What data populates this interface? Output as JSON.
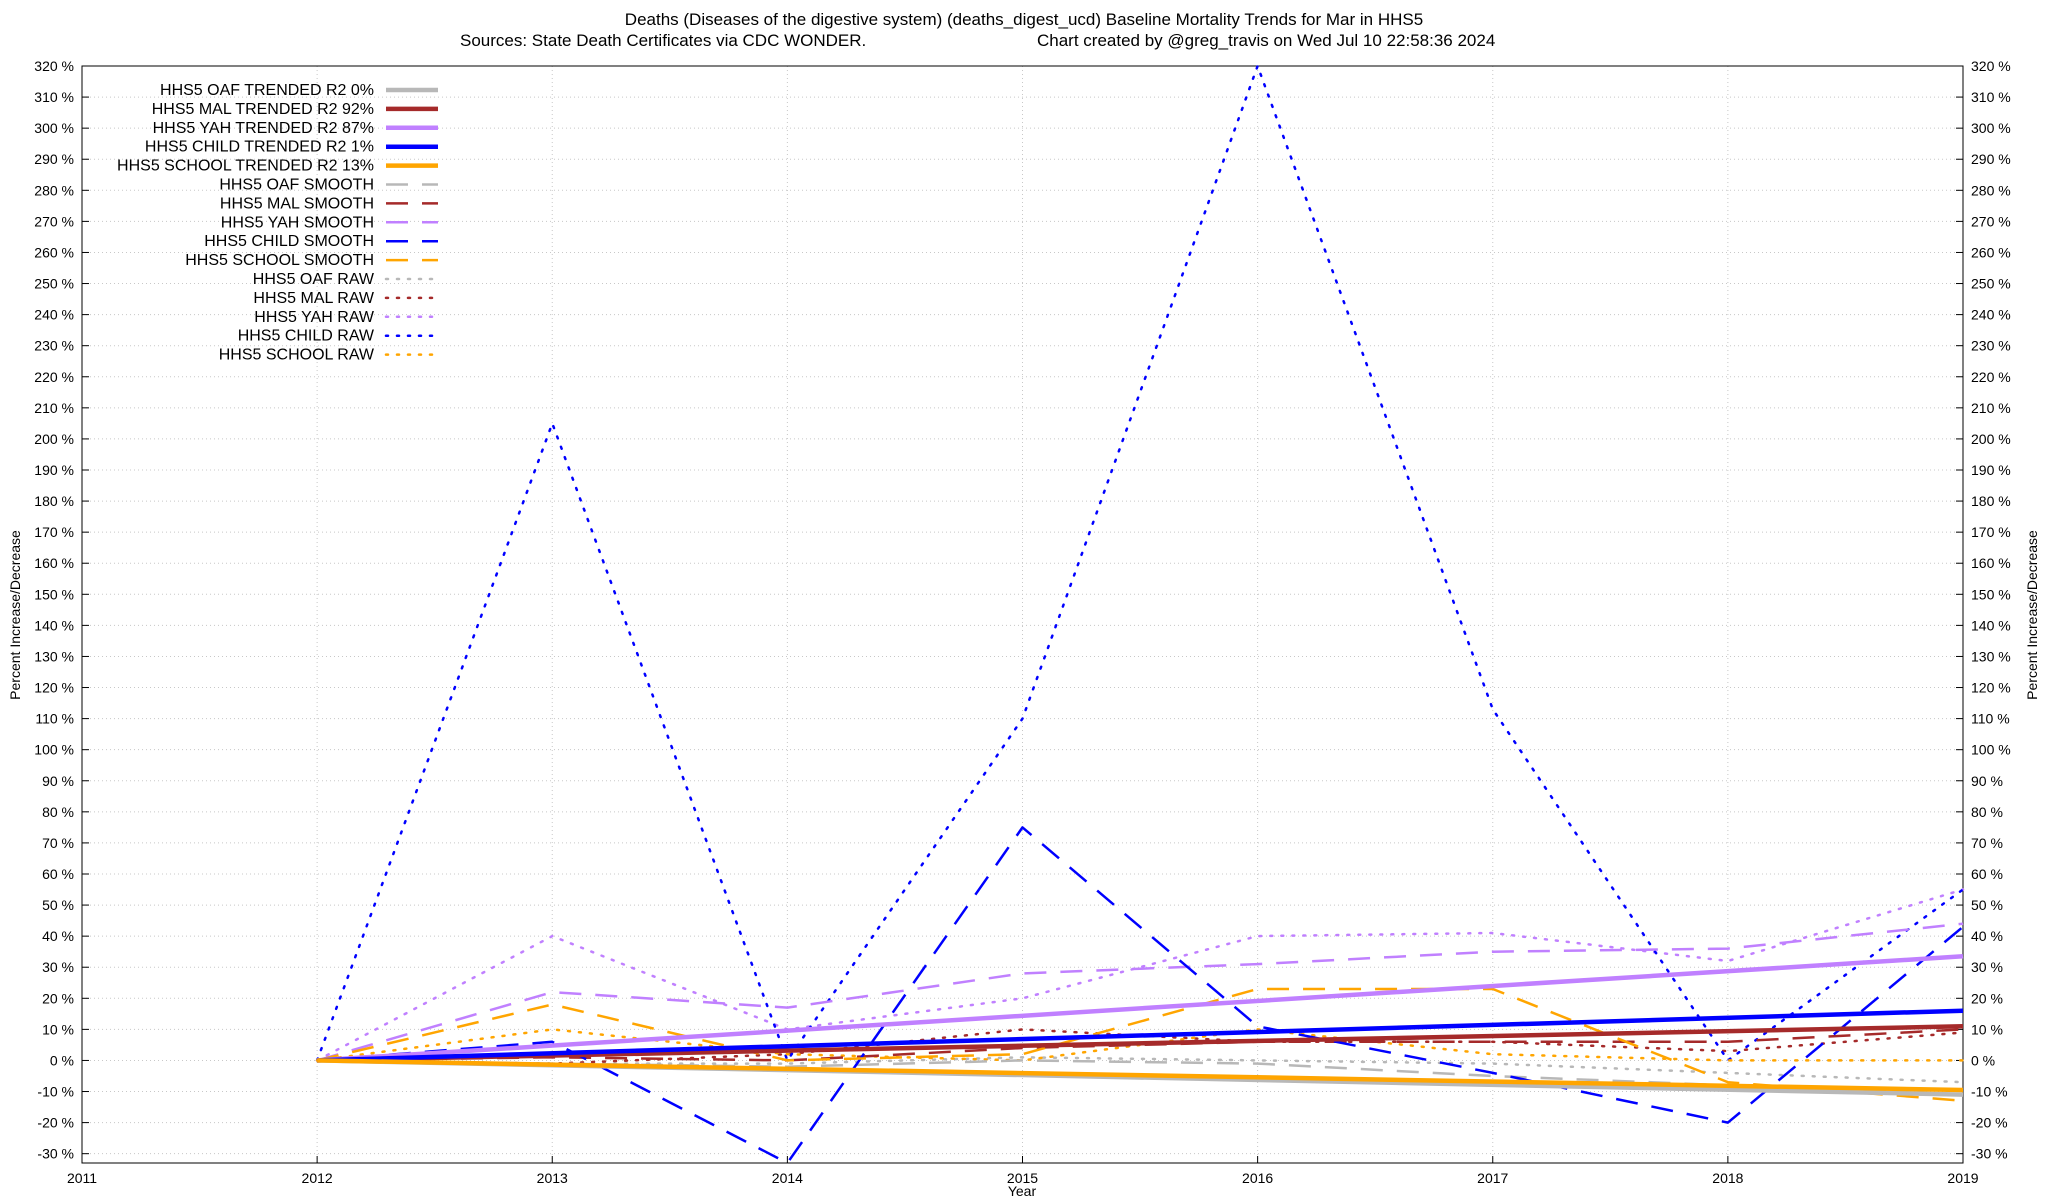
{
  "title": {
    "line1": "Deaths (Diseases of the digestive system) (deaths_digest_ucd)  Baseline Mortality Trends for Mar in HHS5",
    "line2_left": "Sources: State Death Certificates via CDC WONDER.",
    "line2_right": "Chart created by @greg_travis on Wed Jul 10 22:58:36 2024"
  },
  "chart_data": {
    "type": "line",
    "xlabel": "Year",
    "ylabel": "Percent Increase/Decrease",
    "ylabel_right": "Percent Increase/Decrease",
    "xlim": [
      2011,
      2019
    ],
    "ylim": [
      -33,
      320
    ],
    "x_ticks": [
      "2011",
      "2012",
      "2013",
      "2014",
      "2015",
      "2016",
      "2017",
      "2018",
      "2019"
    ],
    "y_tick_values": [
      -30,
      -20,
      -10,
      0,
      10,
      20,
      30,
      40,
      50,
      60,
      70,
      80,
      90,
      100,
      110,
      120,
      130,
      140,
      150,
      160,
      170,
      180,
      190,
      200,
      210,
      220,
      230,
      240,
      250,
      260,
      270,
      280,
      290,
      300,
      310,
      320
    ],
    "y_tick_suffix": " %",
    "grid": true,
    "legend_position": "top-left",
    "series": [
      {
        "name": "HHS5 OAF TRENDED R2  0%",
        "style": "solid",
        "color": "#b8b8b8",
        "x": [
          2012,
          2019
        ],
        "y": [
          0,
          -11
        ]
      },
      {
        "name": "HHS5 MAL TRENDED R2  92%",
        "style": "solid",
        "color": "#a52a2a",
        "x": [
          2012,
          2019
        ],
        "y": [
          0,
          11
        ]
      },
      {
        "name": "HHS5 YAH TRENDED R2  87%",
        "style": "solid",
        "color": "#c080ff",
        "x": [
          2012,
          2019
        ],
        "y": [
          0,
          33.5
        ]
      },
      {
        "name": "HHS5 CHILD TRENDED R2  1%",
        "style": "solid",
        "color": "#0000ff",
        "x": [
          2012,
          2019
        ],
        "y": [
          0,
          16
        ]
      },
      {
        "name": "HHS5 SCHOOL TRENDED R2  13%",
        "style": "solid",
        "color": "#ffa500",
        "x": [
          2012,
          2019
        ],
        "y": [
          0,
          -9.5
        ]
      },
      {
        "name": "HHS5 OAF SMOOTH",
        "style": "dash",
        "color": "#b8b8b8",
        "x": [
          2012,
          2013,
          2014,
          2015,
          2016,
          2017,
          2018,
          2019
        ],
        "y": [
          0,
          -1,
          -2,
          0,
          -1,
          -5,
          -8,
          -11
        ]
      },
      {
        "name": "HHS5 MAL SMOOTH",
        "style": "dash",
        "color": "#a52a2a",
        "x": [
          2012,
          2013,
          2014,
          2015,
          2016,
          2017,
          2018,
          2019
        ],
        "y": [
          0,
          1,
          0,
          4,
          6,
          6,
          6,
          10
        ]
      },
      {
        "name": "HHS5 YAH SMOOTH",
        "style": "dash",
        "color": "#c080ff",
        "x": [
          2012,
          2013,
          2014,
          2015,
          2016,
          2017,
          2018,
          2019
        ],
        "y": [
          0,
          22,
          17,
          28,
          31,
          35,
          36,
          44
        ]
      },
      {
        "name": "HHS5 CHILD SMOOTH",
        "style": "dash",
        "color": "#0000ff",
        "x": [
          2012,
          2013,
          2014,
          2015,
          2016,
          2017,
          2018,
          2019
        ],
        "y": [
          0,
          6,
          -33,
          75,
          11,
          -4,
          -20,
          43
        ]
      },
      {
        "name": "HHS5 SCHOOL SMOOTH",
        "style": "dash",
        "color": "#ffa500",
        "x": [
          2012,
          2013,
          2014,
          2015,
          2016,
          2017,
          2018,
          2019
        ],
        "y": [
          0,
          18,
          0,
          2,
          23,
          23,
          -7,
          -13
        ]
      },
      {
        "name": "HHS5 OAF RAW",
        "style": "dot",
        "color": "#b8b8b8",
        "x": [
          2012,
          2013,
          2014,
          2015,
          2016,
          2017,
          2018,
          2019
        ],
        "y": [
          0,
          -1,
          -1,
          1,
          0,
          -1,
          -4,
          -7
        ]
      },
      {
        "name": "HHS5 MAL RAW",
        "style": "dot",
        "color": "#a52a2a",
        "x": [
          2012,
          2013,
          2014,
          2015,
          2016,
          2017,
          2018,
          2019
        ],
        "y": [
          0,
          -1,
          2,
          10,
          6,
          6,
          3,
          9
        ]
      },
      {
        "name": "HHS5 YAH RAW",
        "style": "dot",
        "color": "#c080ff",
        "x": [
          2012,
          2013,
          2014,
          2015,
          2016,
          2017,
          2018,
          2019
        ],
        "y": [
          0,
          40,
          10,
          20,
          40,
          41,
          32,
          55
        ]
      },
      {
        "name": "HHS5 CHILD RAW",
        "style": "dot",
        "color": "#0000ff",
        "x": [
          2012,
          2013,
          2014,
          2015,
          2016,
          2017,
          2018,
          2019
        ],
        "y": [
          0,
          205,
          0,
          110,
          320,
          113,
          0,
          55
        ]
      },
      {
        "name": "HHS5 SCHOOL RAW",
        "style": "dot",
        "color": "#ffa500",
        "x": [
          2012,
          2013,
          2014,
          2015,
          2016,
          2017,
          2018,
          2019
        ],
        "y": [
          0,
          10,
          2,
          0,
          10,
          2,
          0,
          0
        ]
      }
    ]
  }
}
